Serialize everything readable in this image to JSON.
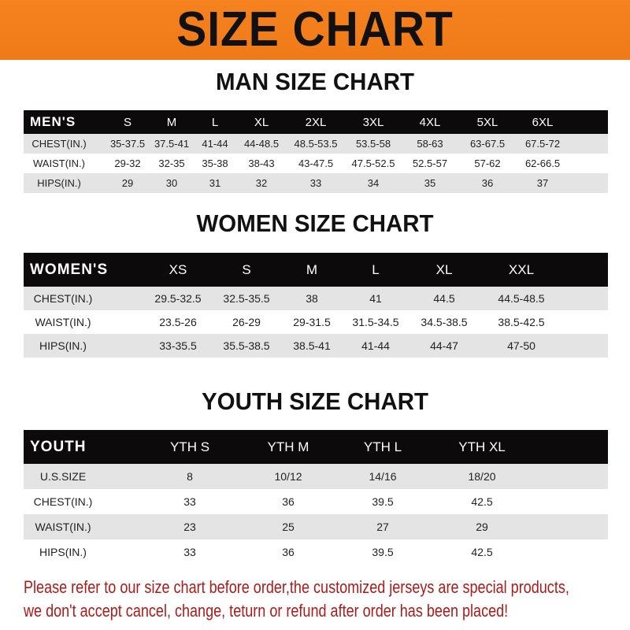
{
  "banner": {
    "title": "SIZE CHART",
    "color": "#f5821f"
  },
  "men": {
    "title": "MAN SIZE CHART",
    "header": [
      "MEN'S",
      "S",
      "M",
      "L",
      "XL",
      "2XL",
      "3XL",
      "4XL",
      "5XL",
      "6XL"
    ],
    "rows": [
      [
        "CHEST(IN.)",
        "35-37.5",
        "37.5-41",
        "41-44",
        "44-48.5",
        "48.5-53.5",
        "53.5-58",
        "58-63",
        "63-67.5",
        "67.5-72"
      ],
      [
        "WAIST(IN.)",
        "29-32",
        "32-35",
        "35-38",
        "38-43",
        "43-47.5",
        "47.5-52.5",
        "52.5-57",
        "57-62",
        "62-66.5"
      ],
      [
        "HIPS(IN.)",
        "29",
        "30",
        "31",
        "32",
        "33",
        "34",
        "35",
        "36",
        "37"
      ]
    ]
  },
  "women": {
    "title": "WOMEN SIZE CHART",
    "header": [
      "WOMEN'S",
      "XS",
      "S",
      "M",
      "L",
      "XL",
      "XXL"
    ],
    "rows": [
      [
        "CHEST(IN.)",
        "29.5-32.5",
        "32.5-35.5",
        "38",
        "41",
        "44.5",
        "44.5-48.5"
      ],
      [
        "WAIST(IN.)",
        "23.5-26",
        "26-29",
        "29-31.5",
        "31.5-34.5",
        "34.5-38.5",
        "38.5-42.5"
      ],
      [
        "HIPS(IN.)",
        "33-35.5",
        "35.5-38.5",
        "38.5-41",
        "41-44",
        "44-47",
        "47-50"
      ]
    ]
  },
  "youth": {
    "title": "YOUTH SIZE CHART",
    "header": [
      "YOUTH",
      "YTH S",
      "YTH M",
      "YTH L",
      "YTH XL"
    ],
    "rows": [
      [
        "U.S.SIZE",
        "8",
        "10/12",
        "14/16",
        "18/20"
      ],
      [
        "CHEST(IN.)",
        "33",
        "36",
        "39.5",
        "42.5"
      ],
      [
        "WAIST(IN.)",
        "23",
        "25",
        "27",
        "29"
      ],
      [
        "HIPS(IN.)",
        "33",
        "36",
        "39.5",
        "42.5"
      ]
    ]
  },
  "footer": {
    "line1": "Please refer to our size chart before order,the customized jerseys are special products,",
    "line2": "we don't accept cancel, change, teturn or refund after order has been placed!",
    "color": "#a81c1c"
  }
}
